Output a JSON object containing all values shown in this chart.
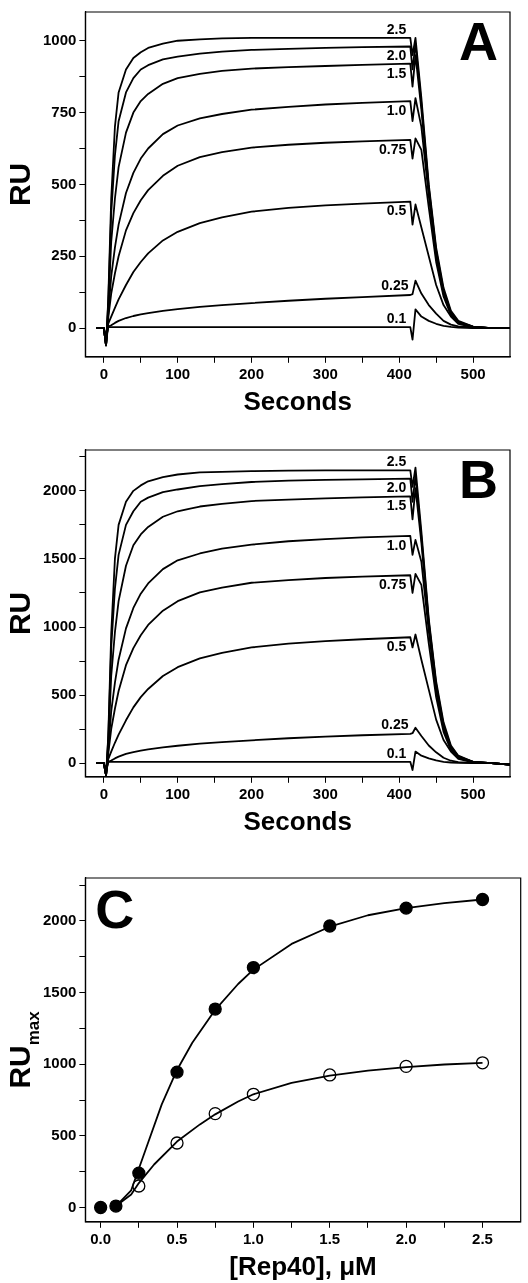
{
  "chart_data": [
    {
      "type": "line",
      "title": "A",
      "xlabel": "Seconds",
      "ylabel": "RU",
      "legend": false,
      "grid": false,
      "marker": "none",
      "line_style": "solid",
      "xlim": [
        -25,
        550
      ],
      "ylim": [
        -100,
        1100
      ],
      "xticks": [
        0,
        100,
        200,
        300,
        400,
        500,
        {
          "value": 50,
          "label": null
        },
        {
          "value": 150,
          "label": null
        },
        {
          "value": 250,
          "label": null
        },
        {
          "value": 350,
          "label": null
        },
        {
          "value": 450,
          "label": null
        }
      ],
      "yticks": [
        0,
        250,
        500,
        750,
        1000,
        {
          "value": 125,
          "label": null
        },
        {
          "value": 375,
          "label": null
        },
        {
          "value": 625,
          "label": null
        },
        {
          "value": 875,
          "label": null
        }
      ],
      "x": [
        -10,
        0,
        3,
        6,
        10,
        15,
        20,
        30,
        40,
        50,
        60,
        80,
        100,
        130,
        160,
        200,
        250,
        300,
        350,
        415,
        418,
        422,
        430,
        440,
        450,
        460,
        470,
        480,
        500,
        525,
        550
      ],
      "series": [
        {
          "name": "2.5",
          "color": "#000000",
          "values": [
            0,
            0,
            -60,
            100,
            450,
            700,
            820,
            900,
            940,
            960,
            975,
            990,
            1000,
            1005,
            1008,
            1010,
            1010,
            1010,
            1010,
            1010,
            950,
            1010,
            800,
            500,
            280,
            140,
            60,
            25,
            5,
            0,
            0
          ]
        },
        {
          "name": "2.0",
          "color": "#000000",
          "values": [
            0,
            0,
            -60,
            90,
            400,
            600,
            720,
            820,
            870,
            900,
            915,
            935,
            945,
            955,
            962,
            968,
            972,
            975,
            978,
            980,
            900,
            990,
            780,
            490,
            270,
            130,
            55,
            22,
            5,
            0,
            0
          ]
        },
        {
          "name": "1.5",
          "color": "#000000",
          "values": [
            0,
            0,
            -60,
            70,
            300,
            450,
            560,
            680,
            750,
            790,
            815,
            850,
            870,
            885,
            895,
            903,
            908,
            912,
            916,
            920,
            840,
            950,
            760,
            480,
            260,
            125,
            50,
            20,
            4,
            0,
            0
          ]
        },
        {
          "name": "1.0",
          "color": "#000000",
          "values": [
            0,
            0,
            -60,
            50,
            180,
            280,
            360,
            470,
            540,
            590,
            625,
            675,
            705,
            730,
            745,
            760,
            770,
            778,
            784,
            790,
            720,
            800,
            700,
            460,
            250,
            120,
            50,
            20,
            4,
            0,
            0
          ]
        },
        {
          "name": "0.75",
          "color": "#000000",
          "values": [
            0,
            0,
            -60,
            35,
            120,
            190,
            250,
            340,
            400,
            445,
            480,
            530,
            565,
            595,
            612,
            628,
            638,
            645,
            650,
            655,
            590,
            660,
            620,
            420,
            230,
            110,
            45,
            18,
            3,
            0,
            0
          ]
        },
        {
          "name": "0.5",
          "color": "#000000",
          "values": [
            0,
            0,
            -60,
            15,
            40,
            70,
            100,
            150,
            195,
            230,
            260,
            305,
            335,
            365,
            385,
            405,
            418,
            427,
            433,
            440,
            360,
            430,
            350,
            250,
            150,
            80,
            40,
            15,
            3,
            0,
            0
          ]
        },
        {
          "name": "0.25",
          "color": "#000000",
          "values": [
            0,
            0,
            -40,
            5,
            10,
            18,
            25,
            35,
            42,
            48,
            52,
            60,
            66,
            74,
            80,
            87,
            95,
            102,
            108,
            115,
            118,
            165,
            120,
            80,
            50,
            25,
            12,
            6,
            2,
            0,
            0
          ]
        },
        {
          "name": "0.1",
          "color": "#000000",
          "values": [
            0,
            0,
            -30,
            3,
            3,
            3,
            3,
            3,
            3,
            3,
            3,
            3,
            3,
            3,
            3,
            3,
            3,
            3,
            3,
            3,
            -40,
            65,
            40,
            25,
            15,
            8,
            4,
            2,
            0,
            0,
            0
          ]
        }
      ]
    },
    {
      "type": "line",
      "title": "B",
      "xlabel": "Seconds",
      "ylabel": "RU",
      "legend": false,
      "grid": false,
      "marker": "none",
      "line_style": "solid",
      "xlim": [
        -25,
        550
      ],
      "ylim": [
        -100,
        2300
      ],
      "xticks": [
        0,
        100,
        200,
        300,
        400,
        500,
        {
          "value": 50,
          "label": null
        },
        {
          "value": 150,
          "label": null
        },
        {
          "value": 250,
          "label": null
        },
        {
          "value": 350,
          "label": null
        },
        {
          "value": 450,
          "label": null
        }
      ],
      "yticks": [
        0,
        500,
        1000,
        1500,
        2000,
        {
          "value": 250,
          "label": null
        },
        {
          "value": 750,
          "label": null
        },
        {
          "value": 1250,
          "label": null
        },
        {
          "value": 1750,
          "label": null
        },
        {
          "value": 2250,
          "label": null
        }
      ],
      "x": [
        -10,
        0,
        3,
        6,
        10,
        15,
        20,
        30,
        40,
        50,
        60,
        80,
        100,
        130,
        160,
        200,
        250,
        300,
        350,
        415,
        418,
        422,
        430,
        440,
        450,
        460,
        470,
        480,
        500,
        525,
        550
      ],
      "series": [
        {
          "name": "2.5",
          "color": "#000000",
          "values": [
            0,
            0,
            -90,
            200,
            950,
            1500,
            1750,
            1920,
            2000,
            2040,
            2070,
            2100,
            2120,
            2135,
            2140,
            2145,
            2148,
            2150,
            2150,
            2150,
            2030,
            2170,
            1700,
            1060,
            600,
            300,
            130,
            55,
            10,
            0,
            -10
          ]
        },
        {
          "name": "2.0",
          "color": "#000000",
          "values": [
            0,
            0,
            -90,
            180,
            850,
            1280,
            1530,
            1750,
            1850,
            1920,
            1950,
            1990,
            2010,
            2035,
            2050,
            2065,
            2075,
            2080,
            2085,
            2090,
            1920,
            2110,
            1660,
            1040,
            580,
            280,
            120,
            50,
            10,
            0,
            -10
          ]
        },
        {
          "name": "1.5",
          "color": "#000000",
          "values": [
            0,
            0,
            -90,
            140,
            640,
            960,
            1190,
            1450,
            1600,
            1680,
            1735,
            1810,
            1850,
            1885,
            1905,
            1925,
            1935,
            1945,
            1952,
            1960,
            1790,
            2020,
            1620,
            1020,
            560,
            270,
            110,
            45,
            10,
            0,
            -10
          ]
        },
        {
          "name": "1.0",
          "color": "#000000",
          "values": [
            0,
            0,
            -90,
            100,
            380,
            590,
            760,
            990,
            1140,
            1245,
            1320,
            1425,
            1490,
            1540,
            1575,
            1605,
            1630,
            1645,
            1658,
            1670,
            1530,
            1640,
            1480,
            970,
            530,
            255,
            105,
            42,
            9,
            0,
            -10
          ]
        },
        {
          "name": "0.75",
          "color": "#000000",
          "values": [
            0,
            0,
            -90,
            70,
            250,
            400,
            530,
            720,
            845,
            940,
            1015,
            1120,
            1190,
            1255,
            1290,
            1325,
            1345,
            1360,
            1370,
            1380,
            1250,
            1390,
            1310,
            880,
            485,
            230,
            95,
            38,
            8,
            0,
            -10
          ]
        },
        {
          "name": "0.5",
          "color": "#000000",
          "values": [
            0,
            0,
            -90,
            30,
            85,
            150,
            210,
            315,
            410,
            485,
            545,
            640,
            705,
            770,
            810,
            850,
            878,
            897,
            910,
            925,
            850,
            945,
            760,
            540,
            320,
            170,
            85,
            32,
            6,
            0,
            -10
          ]
        },
        {
          "name": "0.25",
          "color": "#000000",
          "values": [
            0,
            0,
            -60,
            10,
            20,
            35,
            48,
            68,
            82,
            93,
            101,
            116,
            128,
            143,
            155,
            168,
            183,
            195,
            205,
            215,
            220,
            260,
            200,
            130,
            80,
            40,
            18,
            8,
            2,
            0,
            -10
          ]
        },
        {
          "name": "0.1",
          "color": "#000000",
          "values": [
            0,
            0,
            -50,
            10,
            10,
            10,
            10,
            10,
            10,
            10,
            10,
            10,
            10,
            10,
            10,
            10,
            10,
            10,
            10,
            10,
            -50,
            85,
            55,
            35,
            20,
            10,
            5,
            2,
            0,
            0,
            -10
          ]
        }
      ]
    },
    {
      "type": "scatter",
      "title": "C",
      "xlabel": "[Rep40], μM",
      "ylabel": "RU$_{max}$",
      "legend": false,
      "grid": false,
      "marker": "circle",
      "xlim": [
        -0.1,
        2.75
      ],
      "ylim": [
        -100,
        2300
      ],
      "xticks": [
        {
          "value": 0,
          "label": "0.0"
        },
        {
          "value": 0.5,
          "label": "0.5"
        },
        {
          "value": 1,
          "label": "1.0"
        },
        {
          "value": 1.5,
          "label": "1.5"
        },
        {
          "value": 2,
          "label": "2.0"
        },
        {
          "value": 2.5,
          "label": "2.5"
        },
        {
          "value": 0.25,
          "label": null
        },
        {
          "value": 0.75,
          "label": null
        },
        {
          "value": 1.25,
          "label": null
        },
        {
          "value": 1.75,
          "label": null
        },
        {
          "value": 2.25,
          "label": null
        }
      ],
      "yticks": [
        0,
        500,
        1000,
        1500,
        2000,
        {
          "value": 250,
          "label": null
        },
        {
          "value": 750,
          "label": null
        },
        {
          "value": 1250,
          "label": null
        },
        {
          "value": 1750,
          "label": null
        },
        {
          "value": 2250,
          "label": null
        }
      ],
      "series": [
        {
          "type": "line",
          "color": "#000000",
          "marker": "none",
          "x": [
            0.1,
            0.2,
            0.3,
            0.4,
            0.5,
            0.6,
            0.75,
            0.9,
            1.0,
            1.25,
            1.5,
            1.75,
            2.0,
            2.25,
            2.5
          ],
          "values": [
            10,
            120,
            420,
            720,
            960,
            1150,
            1380,
            1560,
            1660,
            1840,
            1960,
            2040,
            2090,
            2125,
            2150
          ]
        },
        {
          "type": "line",
          "color": "#000000",
          "marker": "none",
          "x": [
            0.1,
            0.2,
            0.25,
            0.35,
            0.5,
            0.65,
            0.75,
            0.9,
            1.0,
            1.25,
            1.5,
            1.75,
            2.0,
            2.25,
            2.5
          ],
          "values": [
            10,
            90,
            170,
            300,
            460,
            580,
            650,
            740,
            790,
            870,
            920,
            955,
            980,
            998,
            1010
          ]
        },
        {
          "color": "#ffffff",
          "x": [
            0.25,
            0.5,
            0.75,
            1.0,
            1.5,
            2.0,
            2.5
          ],
          "values": [
            150,
            450,
            655,
            790,
            925,
            985,
            1010
          ]
        },
        {
          "color": "#000000",
          "x": [
            0,
            0.1,
            0.25,
            0.5,
            0.75,
            1.0,
            1.5,
            2.0,
            2.5
          ],
          "values": [
            0,
            10,
            240,
            945,
            1385,
            1675,
            1965,
            2090,
            2150
          ]
        }
      ]
    }
  ]
}
